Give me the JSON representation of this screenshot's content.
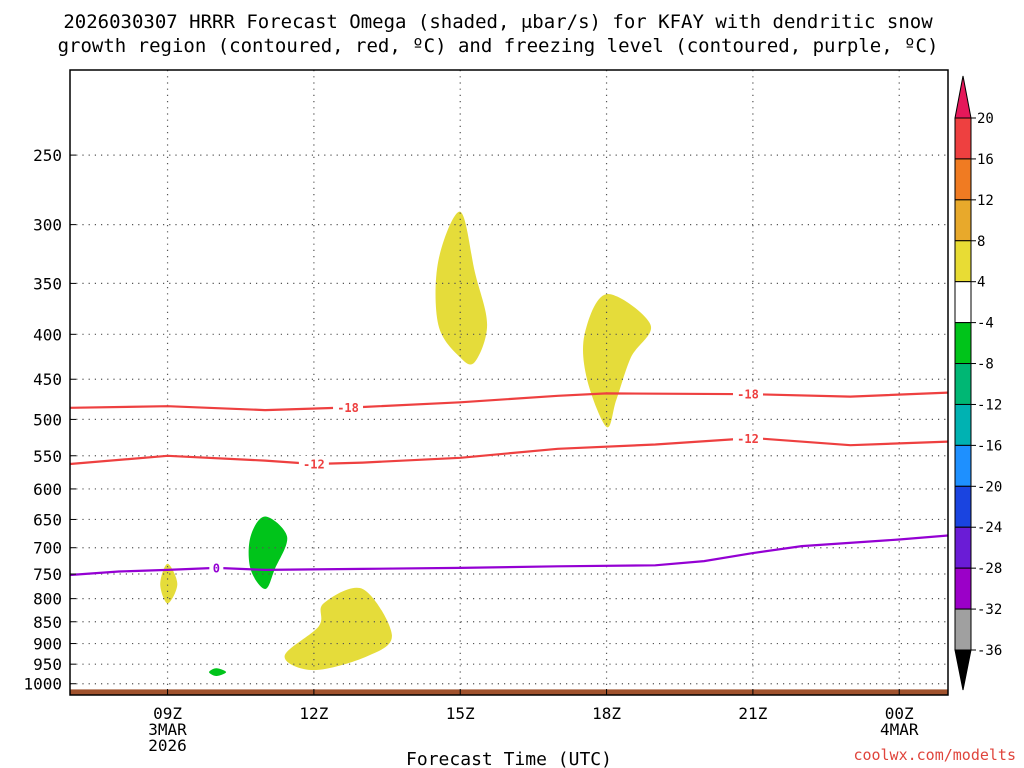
{
  "chart_data": {
    "type": "heatmap",
    "title_line1": "2026030307 HRRR Forecast Omega (shaded, μbar/s) for KFAY with dendritic snow",
    "title_line2": "growth region (contoured, red, ºC) and freezing level (contoured, purple, ºC)",
    "xlabel": "Forecast Time (UTC)",
    "ylabel": "",
    "credit": "coolwx.com/modelts",
    "x_range_hours": [
      7,
      25
    ],
    "y_axis": {
      "type": "pressure_log",
      "units": "mb",
      "range": [
        200,
        1030
      ],
      "ticks": [
        250,
        300,
        350,
        400,
        450,
        500,
        550,
        600,
        650,
        700,
        750,
        800,
        850,
        900,
        950,
        1000
      ]
    },
    "x_ticks": [
      {
        "hour": 9,
        "lines": [
          "09Z",
          "3MAR",
          "2026"
        ]
      },
      {
        "hour": 12,
        "lines": [
          "12Z"
        ]
      },
      {
        "hour": 15,
        "lines": [
          "15Z"
        ]
      },
      {
        "hour": 18,
        "lines": [
          "18Z"
        ]
      },
      {
        "hour": 21,
        "lines": [
          "21Z"
        ]
      },
      {
        "hour": 24,
        "lines": [
          "00Z",
          "4MAR"
        ]
      }
    ],
    "colorbar": {
      "labels": [
        "20",
        "16",
        "12",
        "8",
        "4",
        "-4",
        "-8",
        "-12",
        "-16",
        "-20",
        "-24",
        "-28",
        "-32",
        "-36"
      ],
      "colors": [
        "#e5185a",
        "#ee4040",
        "#f07b22",
        "#e8a92b",
        "#e8dc34",
        "#ffffff",
        "#00c41a",
        "#00b774",
        "#00b2b2",
        "#1e90ff",
        "#1a44e0",
        "#6a1cd6",
        "#9b00c8",
        "#a0a0a0",
        "#000000"
      ]
    },
    "omega_regions": [
      {
        "name": "omega-pos-15z-upper",
        "color": "#e5dc3a",
        "pts": [
          [
            15.0,
            290
          ],
          [
            15.3,
            340
          ],
          [
            15.55,
            390
          ],
          [
            15.3,
            430
          ],
          [
            15.0,
            425
          ],
          [
            14.55,
            390
          ],
          [
            14.55,
            330
          ]
        ]
      },
      {
        "name": "omega-pos-18z",
        "color": "#e5dc3a",
        "pts": [
          [
            18.0,
            360
          ],
          [
            18.9,
            390
          ],
          [
            18.5,
            425
          ],
          [
            18.2,
            475
          ],
          [
            18.0,
            510
          ],
          [
            17.6,
            450
          ],
          [
            17.55,
            400
          ]
        ]
      },
      {
        "name": "omega-pos-09z",
        "color": "#e5dc3a",
        "pts": [
          [
            9.0,
            730
          ],
          [
            9.2,
            770
          ],
          [
            9.0,
            810
          ],
          [
            8.85,
            770
          ]
        ]
      },
      {
        "name": "omega-pos-13z-low",
        "color": "#e5dc3a",
        "pts": [
          [
            12.2,
            810
          ],
          [
            13.0,
            780
          ],
          [
            13.6,
            880
          ],
          [
            13.1,
            930
          ],
          [
            12.0,
            965
          ],
          [
            11.4,
            930
          ],
          [
            12.1,
            860
          ]
        ]
      },
      {
        "name": "omega-neg-11z",
        "color": "#00c41a",
        "pts": [
          [
            11.0,
            645
          ],
          [
            11.45,
            680
          ],
          [
            11.2,
            740
          ],
          [
            11.0,
            780
          ],
          [
            10.7,
            740
          ],
          [
            10.7,
            680
          ]
        ]
      },
      {
        "name": "omega-neg-10z",
        "color": "#00c41a",
        "pts": [
          [
            10.0,
            960
          ],
          [
            10.2,
            970
          ],
          [
            10.0,
            980
          ],
          [
            9.85,
            970
          ]
        ]
      }
    ],
    "contours": [
      {
        "name": "isotherm-minus-18",
        "color": "#ee4040",
        "value": "-18",
        "pts": [
          [
            7,
            485
          ],
          [
            9,
            483
          ],
          [
            11,
            488
          ],
          [
            13,
            484
          ],
          [
            15,
            478
          ],
          [
            17,
            470
          ],
          [
            18,
            467
          ],
          [
            21,
            468
          ],
          [
            23,
            471
          ],
          [
            25,
            466
          ]
        ],
        "label_hours": [
          12.7,
          20.9
        ]
      },
      {
        "name": "isotherm-minus-12",
        "color": "#ee4040",
        "value": "-12",
        "pts": [
          [
            7,
            562
          ],
          [
            9,
            550
          ],
          [
            11,
            557
          ],
          [
            12,
            562
          ],
          [
            13,
            560
          ],
          [
            15,
            553
          ],
          [
            17,
            540
          ],
          [
            19,
            534
          ],
          [
            21,
            525
          ],
          [
            23,
            535
          ],
          [
            25,
            530
          ]
        ],
        "label_hours": [
          12.0,
          20.9
        ]
      },
      {
        "name": "freezing-level-0",
        "color": "#9400d3",
        "value": "0",
        "pts": [
          [
            7,
            752
          ],
          [
            8,
            745
          ],
          [
            9,
            742
          ],
          [
            10,
            738
          ],
          [
            11,
            742
          ],
          [
            13,
            740
          ],
          [
            15,
            738
          ],
          [
            17,
            735
          ],
          [
            19,
            733
          ],
          [
            20,
            725
          ],
          [
            21,
            710
          ],
          [
            22,
            697
          ],
          [
            24,
            685
          ],
          [
            25,
            678
          ]
        ],
        "label_hours": [
          10.0
        ]
      }
    ],
    "ground": {
      "color": "#a0522d",
      "top_mb": 1015
    }
  }
}
